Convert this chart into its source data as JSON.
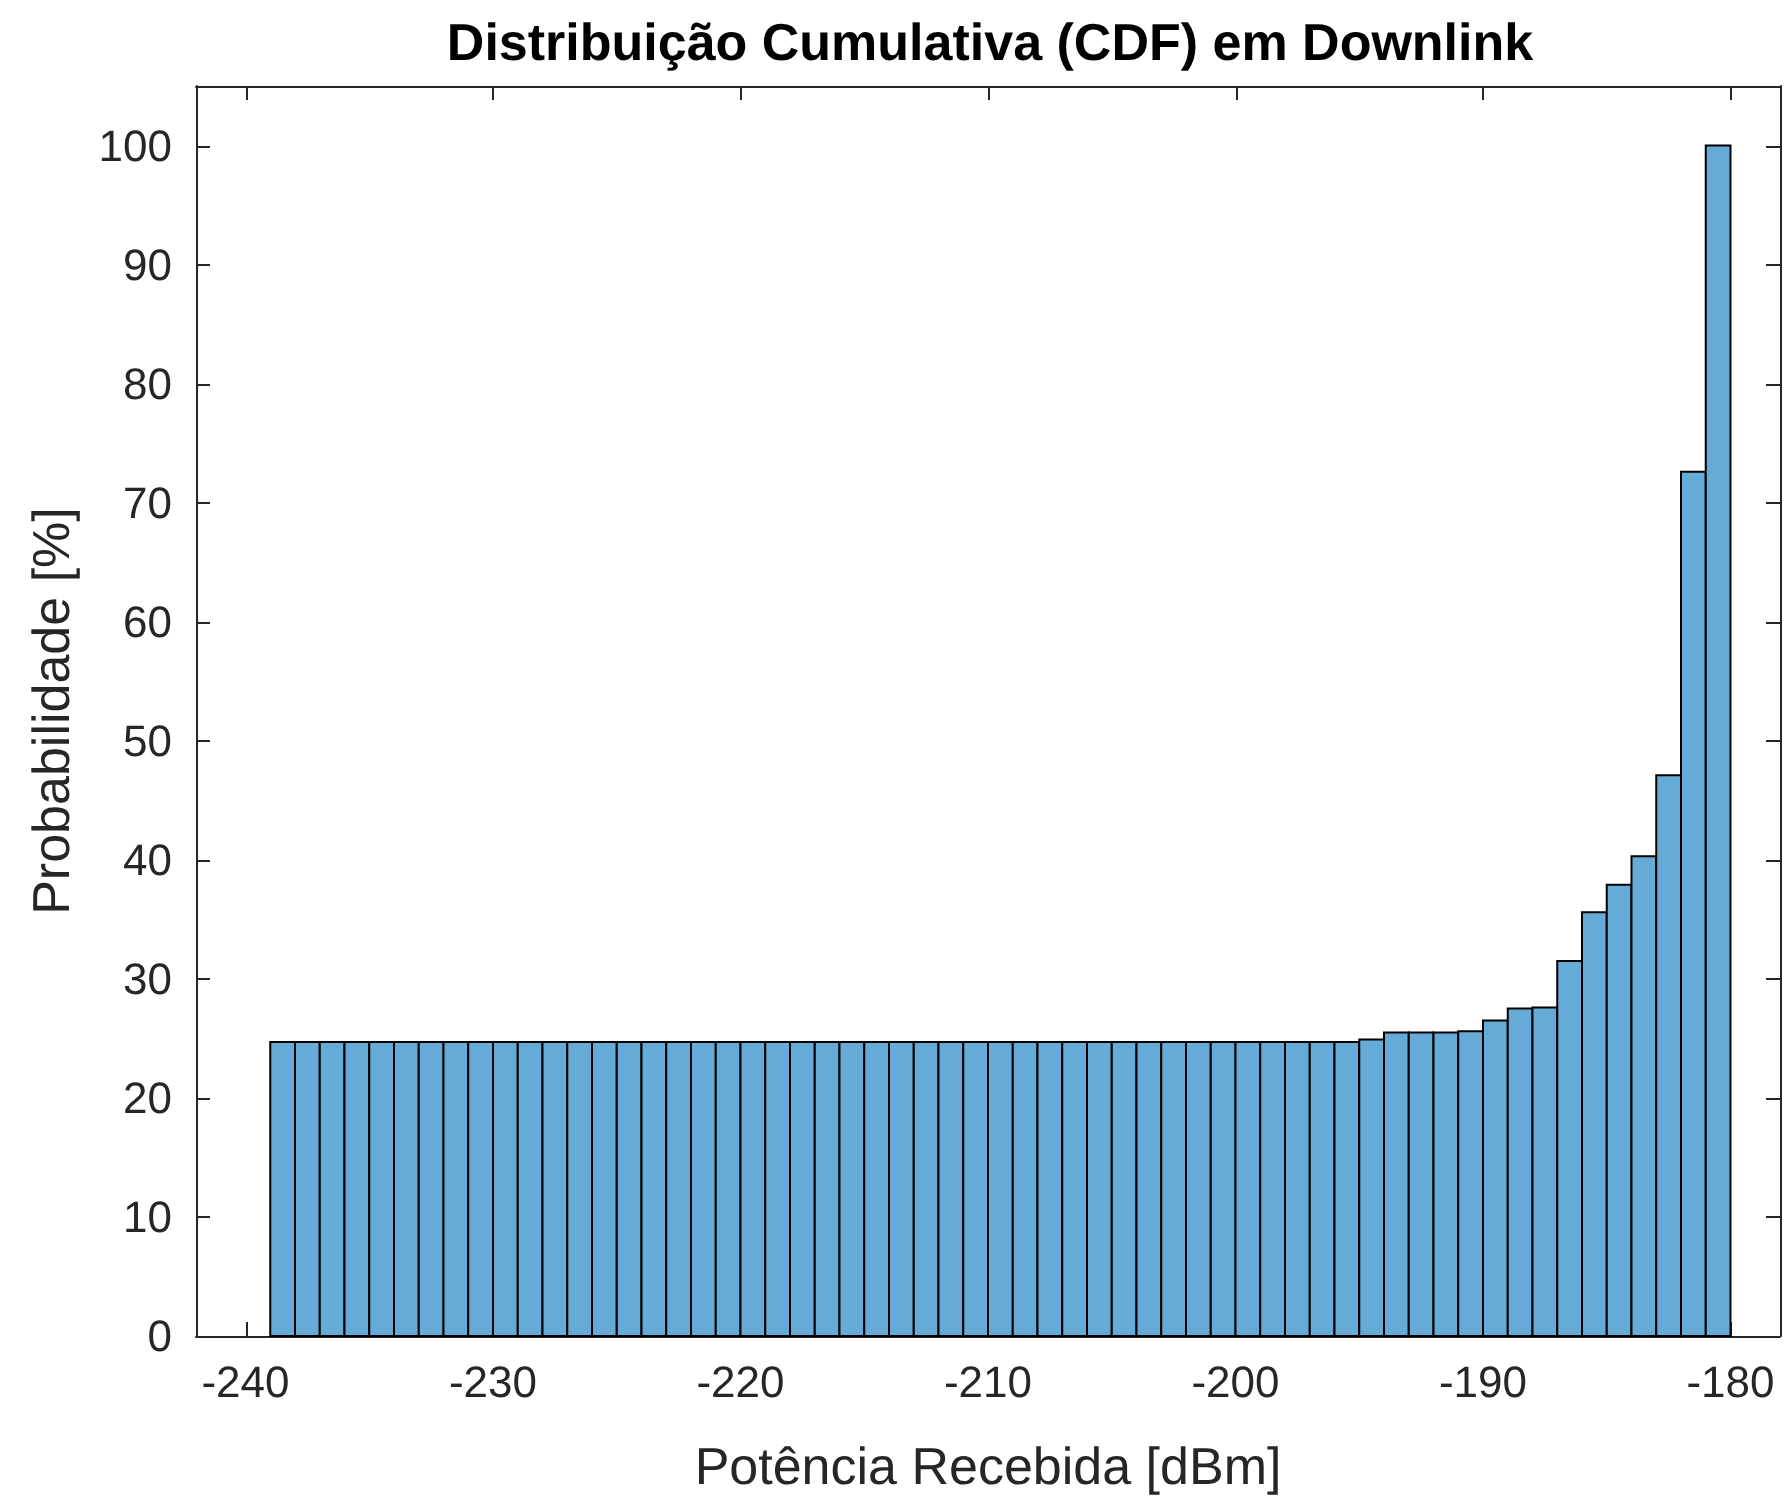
{
  "chart_data": {
    "type": "histogram",
    "title": "Distribuição Cumulativa (CDF) em Downlink",
    "xlabel": "Potência Recebida [dBm]",
    "ylabel": "Probabilidade [%]",
    "bins": [
      -239,
      -238,
      -237,
      -236,
      -235,
      -234,
      -233,
      -232,
      -231,
      -230,
      -229,
      -228,
      -227,
      -226,
      -225,
      -224,
      -223,
      -222,
      -221,
      -220,
      -219,
      -218,
      -217,
      -216,
      -215,
      -214,
      -213,
      -212,
      -211,
      -210,
      -209,
      -208,
      -207,
      -206,
      -205,
      -204,
      -203,
      -202,
      -201,
      -200,
      -199,
      -198,
      -197,
      -196,
      -195,
      -194,
      -193,
      -192,
      -191,
      -190,
      -189,
      -188,
      -187,
      -186,
      -185,
      -184,
      -183,
      -182,
      -181,
      -180
    ],
    "values": [
      24.7,
      24.7,
      24.7,
      24.7,
      24.7,
      24.7,
      24.7,
      24.7,
      24.7,
      24.7,
      24.7,
      24.7,
      24.7,
      24.7,
      24.7,
      24.7,
      24.7,
      24.7,
      24.7,
      24.7,
      24.7,
      24.7,
      24.7,
      24.7,
      24.7,
      24.7,
      24.7,
      24.7,
      24.7,
      24.7,
      24.7,
      24.7,
      24.7,
      24.7,
      24.7,
      24.7,
      24.7,
      24.7,
      24.7,
      24.7,
      24.7,
      24.7,
      24.7,
      24.7,
      24.9,
      25.5,
      25.5,
      25.5,
      25.6,
      26.5,
      27.5,
      27.6,
      31.5,
      35.6,
      37.9,
      40.3,
      47.1,
      72.6,
      100
    ],
    "color": "#66aad7",
    "xlim": [
      -242,
      -178
    ],
    "xticks": [
      -240,
      -230,
      -220,
      -210,
      -200,
      -190,
      -180
    ],
    "ylim": [
      0,
      105
    ],
    "yticks": [
      0,
      10,
      20,
      30,
      40,
      50,
      60,
      70,
      80,
      90,
      100
    ]
  }
}
